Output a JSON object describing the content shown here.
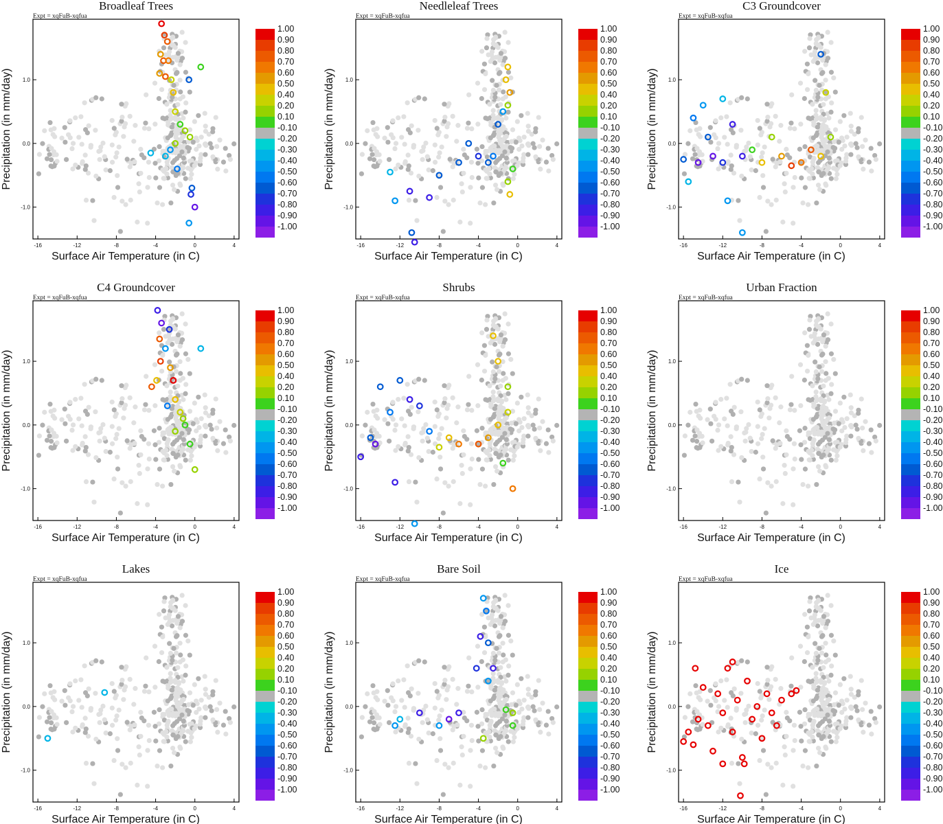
{
  "figure": {
    "expt_label": "Expt = xqFuB-xqfua",
    "xlabel": "Surface Air Temperature (in C)",
    "ylabel": "Precipitation (in mm/day)",
    "xticks": [
      "-16",
      "-12",
      "-8",
      "-4",
      "0",
      "4"
    ],
    "yticks": [
      "1.0",
      "0.0",
      "-1.0"
    ],
    "colorbar": {
      "labels": [
        "1.00",
        "0.90",
        "0.80",
        "0.70",
        "0.60",
        "0.50",
        "0.40",
        "0.20",
        "0.10",
        "-0.10",
        "-0.20",
        "-0.30",
        "-0.40",
        "-0.50",
        "-0.60",
        "-0.70",
        "-0.80",
        "-0.90",
        "-1.00"
      ],
      "colors": [
        "#e60000",
        "#e83c00",
        "#ec5a00",
        "#f07800",
        "#e49a00",
        "#e8be00",
        "#c8d200",
        "#96d200",
        "#3cd21e",
        "#b4b4b4",
        "#00d2d2",
        "#00b4e6",
        "#0096f0",
        "#0078f0",
        "#005ad2",
        "#1e32dc",
        "#3c1ee6",
        "#6414e6",
        "#8c1ee6"
      ]
    },
    "colors": {
      "background_points": "#e0e0e0",
      "active_points": "#b0b0b0"
    }
  },
  "panels": [
    {
      "title": "Broadleaf Trees"
    },
    {
      "title": "Needleleaf Trees"
    },
    {
      "title": "C3 Groundcover"
    },
    {
      "title": "C4 Groundcover"
    },
    {
      "title": "Shrubs"
    },
    {
      "title": "Urban Fraction"
    },
    {
      "title": "Lakes"
    },
    {
      "title": "Bare Soil"
    },
    {
      "title": "Ice"
    }
  ],
  "chart_data": {
    "type": "scatter",
    "xlim": [
      -16.5,
      4.5
    ],
    "ylim": [
      -1.5,
      1.95
    ],
    "x_tick_values": [
      -16,
      -12,
      -8,
      -4,
      0,
      4
    ],
    "y_tick_values": [
      1.0,
      0.0,
      -1.0
    ],
    "color_variable": "correlation (-1.00 to 1.00)",
    "panels": [
      {
        "title": "Broadleaf Trees",
        "highlight": [
          {
            "x": -3.4,
            "y": 1.88,
            "c": 0.95
          },
          {
            "x": -3.1,
            "y": 1.7,
            "c": 0.9
          },
          {
            "x": -2.8,
            "y": 1.6,
            "c": 0.8
          },
          {
            "x": -3.5,
            "y": 1.4,
            "c": 0.6
          },
          {
            "x": -3.2,
            "y": 1.3,
            "c": 0.75
          },
          {
            "x": -2.7,
            "y": 1.3,
            "c": 0.7
          },
          {
            "x": -3.6,
            "y": 1.1,
            "c": 0.55
          },
          {
            "x": -3.0,
            "y": 1.05,
            "c": 0.8
          },
          {
            "x": -2.4,
            "y": 1.0,
            "c": 0.35
          },
          {
            "x": -2.2,
            "y": 0.8,
            "c": 0.45
          },
          {
            "x": 0.6,
            "y": 1.2,
            "c": 0.15
          },
          {
            "x": -0.6,
            "y": 1.0,
            "c": -0.5
          },
          {
            "x": -2.0,
            "y": 0.5,
            "c": 0.3
          },
          {
            "x": -1.5,
            "y": 0.3,
            "c": 0.15
          },
          {
            "x": -1.0,
            "y": 0.2,
            "c": 0.2
          },
          {
            "x": -0.5,
            "y": 0.1,
            "c": 0.25
          },
          {
            "x": -2.5,
            "y": -0.1,
            "c": -0.3
          },
          {
            "x": -3.0,
            "y": -0.2,
            "c": -0.25
          },
          {
            "x": -4.5,
            "y": -0.15,
            "c": -0.25
          },
          {
            "x": -1.8,
            "y": -0.4,
            "c": -0.45
          },
          {
            "x": -0.3,
            "y": -0.7,
            "c": -0.6
          },
          {
            "x": -0.4,
            "y": -0.8,
            "c": -0.7
          },
          {
            "x": 0.0,
            "y": -1.0,
            "c": -0.85
          },
          {
            "x": -0.6,
            "y": -1.25,
            "c": -0.3
          },
          {
            "x": -2.0,
            "y": 0.0,
            "c": 0.2
          }
        ]
      },
      {
        "title": "Needleleaf Trees",
        "highlight": [
          {
            "x": -1.0,
            "y": 1.2,
            "c": 0.5
          },
          {
            "x": -1.2,
            "y": 1.0,
            "c": 0.4
          },
          {
            "x": -0.8,
            "y": 0.8,
            "c": 0.6
          },
          {
            "x": -1.0,
            "y": 0.6,
            "c": 0.2
          },
          {
            "x": -1.5,
            "y": 0.5,
            "c": -0.3
          },
          {
            "x": -2.0,
            "y": 0.3,
            "c": -0.6
          },
          {
            "x": -4.0,
            "y": -0.2,
            "c": -0.7
          },
          {
            "x": -6.0,
            "y": -0.3,
            "c": -0.5
          },
          {
            "x": -8.0,
            "y": -0.5,
            "c": -0.6
          },
          {
            "x": -9.0,
            "y": -0.85,
            "c": -0.75
          },
          {
            "x": -12.5,
            "y": -0.9,
            "c": -0.3
          },
          {
            "x": -11.0,
            "y": -0.75,
            "c": -0.8
          },
          {
            "x": -10.8,
            "y": -1.4,
            "c": -0.5
          },
          {
            "x": -10.5,
            "y": -1.55,
            "c": -0.8
          },
          {
            "x": -3.0,
            "y": -0.3,
            "c": -0.5
          },
          {
            "x": -1.0,
            "y": -0.6,
            "c": 0.25
          },
          {
            "x": -0.5,
            "y": -0.4,
            "c": 0.15
          },
          {
            "x": -0.8,
            "y": -0.8,
            "c": 0.4
          },
          {
            "x": -13.0,
            "y": -0.45,
            "c": -0.25
          },
          {
            "x": -5.0,
            "y": 0.0,
            "c": -0.55
          },
          {
            "x": -2.5,
            "y": -0.2,
            "c": -0.45
          }
        ]
      },
      {
        "title": "C3 Groundcover",
        "highlight": [
          {
            "x": -2.0,
            "y": 1.4,
            "c": -0.55
          },
          {
            "x": -1.5,
            "y": 0.8,
            "c": 0.3
          },
          {
            "x": -12.0,
            "y": 0.7,
            "c": -0.2
          },
          {
            "x": -14.0,
            "y": 0.6,
            "c": -0.3
          },
          {
            "x": -15.0,
            "y": 0.4,
            "c": -0.4
          },
          {
            "x": -13.5,
            "y": 0.1,
            "c": -0.6
          },
          {
            "x": -11.0,
            "y": 0.3,
            "c": -0.8
          },
          {
            "x": -10.0,
            "y": -0.2,
            "c": -0.75
          },
          {
            "x": -9.0,
            "y": -0.1,
            "c": 0.15
          },
          {
            "x": -8.0,
            "y": -0.3,
            "c": 0.5
          },
          {
            "x": -6.0,
            "y": -0.2,
            "c": 0.6
          },
          {
            "x": -4.0,
            "y": -0.3,
            "c": 0.7
          },
          {
            "x": -3.0,
            "y": -0.1,
            "c": 0.8
          },
          {
            "x": -2.0,
            "y": -0.2,
            "c": 0.4
          },
          {
            "x": -1.0,
            "y": 0.1,
            "c": 0.2
          },
          {
            "x": -15.5,
            "y": -0.6,
            "c": -0.25
          },
          {
            "x": -14.5,
            "y": -0.3,
            "c": -0.9
          },
          {
            "x": -13.0,
            "y": -0.2,
            "c": -0.85
          },
          {
            "x": -12.0,
            "y": -0.3,
            "c": -0.7
          },
          {
            "x": -11.5,
            "y": -0.9,
            "c": -0.35
          },
          {
            "x": -10.0,
            "y": -1.4,
            "c": -0.3
          },
          {
            "x": -7.0,
            "y": 0.1,
            "c": 0.25
          },
          {
            "x": -5.0,
            "y": -0.35,
            "c": 0.85
          },
          {
            "x": -16.0,
            "y": -0.25,
            "c": -0.5
          }
        ]
      },
      {
        "title": "C4 Groundcover",
        "highlight": [
          {
            "x": -3.8,
            "y": 1.8,
            "c": -0.8
          },
          {
            "x": -3.4,
            "y": 1.6,
            "c": -0.85
          },
          {
            "x": -2.6,
            "y": 1.5,
            "c": -0.7
          },
          {
            "x": -3.6,
            "y": 1.35,
            "c": 0.75
          },
          {
            "x": -3.0,
            "y": 1.2,
            "c": -0.3
          },
          {
            "x": 0.6,
            "y": 1.2,
            "c": -0.25
          },
          {
            "x": -3.5,
            "y": 1.0,
            "c": 0.85
          },
          {
            "x": -2.5,
            "y": 0.9,
            "c": 0.6
          },
          {
            "x": -3.9,
            "y": 0.7,
            "c": 0.5
          },
          {
            "x": -2.2,
            "y": 0.7,
            "c": 0.95
          },
          {
            "x": -4.4,
            "y": 0.6,
            "c": 0.75
          },
          {
            "x": -2.0,
            "y": 0.4,
            "c": 0.5
          },
          {
            "x": -1.5,
            "y": 0.2,
            "c": 0.35
          },
          {
            "x": -1.0,
            "y": 0.0,
            "c": 0.15
          },
          {
            "x": -2.0,
            "y": -0.1,
            "c": 0.2
          },
          {
            "x": -0.5,
            "y": -0.3,
            "c": 0.15
          },
          {
            "x": 0.0,
            "y": -0.7,
            "c": 0.2
          },
          {
            "x": -1.2,
            "y": 0.1,
            "c": 0.25
          },
          {
            "x": -2.8,
            "y": 0.3,
            "c": -0.4
          }
        ]
      },
      {
        "title": "Shrubs",
        "highlight": [
          {
            "x": -14.0,
            "y": 0.6,
            "c": -0.6
          },
          {
            "x": -12.0,
            "y": 0.7,
            "c": -0.55
          },
          {
            "x": -11.0,
            "y": 0.4,
            "c": -0.8
          },
          {
            "x": -10.0,
            "y": 0.3,
            "c": -0.7
          },
          {
            "x": -13.0,
            "y": 0.2,
            "c": -0.45
          },
          {
            "x": -15.0,
            "y": -0.2,
            "c": -0.6
          },
          {
            "x": -16.0,
            "y": -0.5,
            "c": -0.75
          },
          {
            "x": -12.5,
            "y": -0.9,
            "c": -0.8
          },
          {
            "x": -10.5,
            "y": -1.55,
            "c": -0.3
          },
          {
            "x": -9.0,
            "y": -0.1,
            "c": -0.4
          },
          {
            "x": -7.0,
            "y": -0.2,
            "c": 0.4
          },
          {
            "x": -6.0,
            "y": -0.3,
            "c": 0.7
          },
          {
            "x": -4.0,
            "y": -0.3,
            "c": 0.8
          },
          {
            "x": -3.0,
            "y": -0.2,
            "c": 0.6
          },
          {
            "x": -2.0,
            "y": 0.0,
            "c": 0.5
          },
          {
            "x": -1.0,
            "y": 0.2,
            "c": 0.3
          },
          {
            "x": -2.5,
            "y": 1.4,
            "c": 0.5
          },
          {
            "x": -2.0,
            "y": 1.0,
            "c": 0.4
          },
          {
            "x": -1.0,
            "y": 0.6,
            "c": 0.2
          },
          {
            "x": -0.5,
            "y": -1.0,
            "c": 0.7
          },
          {
            "x": -1.5,
            "y": -0.6,
            "c": 0.15
          },
          {
            "x": -8.0,
            "y": -0.35,
            "c": 0.35
          },
          {
            "x": -14.5,
            "y": -0.3,
            "c": -0.85
          }
        ]
      },
      {
        "title": "Urban Fraction",
        "highlight": []
      },
      {
        "title": "Lakes",
        "highlight": [
          {
            "x": -15.0,
            "y": -0.5,
            "c": -0.25
          },
          {
            "x": -9.2,
            "y": 0.22,
            "c": -0.2
          }
        ]
      },
      {
        "title": "Bare Soil",
        "highlight": [
          {
            "x": -3.5,
            "y": 1.7,
            "c": -0.3
          },
          {
            "x": -3.2,
            "y": 1.5,
            "c": -0.4
          },
          {
            "x": -3.8,
            "y": 1.1,
            "c": -0.8
          },
          {
            "x": -3.0,
            "y": 1.0,
            "c": -0.6
          },
          {
            "x": -4.2,
            "y": 0.6,
            "c": -0.7
          },
          {
            "x": -2.5,
            "y": 0.6,
            "c": -0.75
          },
          {
            "x": -3.0,
            "y": 0.4,
            "c": -0.3
          },
          {
            "x": -1.2,
            "y": -0.05,
            "c": 0.15
          },
          {
            "x": -0.5,
            "y": -0.1,
            "c": 0.2
          },
          {
            "x": -0.5,
            "y": -0.3,
            "c": 0.15
          },
          {
            "x": -12.0,
            "y": -0.2,
            "c": -0.25
          },
          {
            "x": -10.0,
            "y": -0.1,
            "c": -0.8
          },
          {
            "x": -8.0,
            "y": -0.3,
            "c": -0.3
          },
          {
            "x": -6.0,
            "y": -0.1,
            "c": -0.75
          },
          {
            "x": -3.5,
            "y": -0.5,
            "c": 0.25
          },
          {
            "x": -12.5,
            "y": -0.3,
            "c": -0.3
          },
          {
            "x": -7.0,
            "y": -0.2,
            "c": -0.85
          }
        ]
      },
      {
        "title": "Ice",
        "highlight": [
          {
            "x": -16.0,
            "y": -0.55,
            "c": 1.0
          },
          {
            "x": -15.5,
            "y": -0.4,
            "c": 1.0
          },
          {
            "x": -15.0,
            "y": -0.6,
            "c": 1.0
          },
          {
            "x": -14.5,
            "y": -0.2,
            "c": 1.0
          },
          {
            "x": -14.0,
            "y": 0.3,
            "c": 1.0
          },
          {
            "x": -13.5,
            "y": -0.3,
            "c": 1.0
          },
          {
            "x": -13.0,
            "y": -0.7,
            "c": 1.0
          },
          {
            "x": -12.5,
            "y": 0.2,
            "c": 1.0
          },
          {
            "x": -12.0,
            "y": -0.1,
            "c": 1.0
          },
          {
            "x": -11.5,
            "y": 0.6,
            "c": 1.0
          },
          {
            "x": -11.0,
            "y": -0.4,
            "c": 1.0
          },
          {
            "x": -10.5,
            "y": 0.1,
            "c": 1.0
          },
          {
            "x": -10.0,
            "y": -0.8,
            "c": 1.0
          },
          {
            "x": -9.5,
            "y": 0.4,
            "c": 1.0
          },
          {
            "x": -9.0,
            "y": -0.2,
            "c": 1.0
          },
          {
            "x": -8.5,
            "y": 0.0,
            "c": 1.0
          },
          {
            "x": -8.0,
            "y": -0.5,
            "c": 1.0
          },
          {
            "x": -7.5,
            "y": 0.2,
            "c": 1.0
          },
          {
            "x": -7.0,
            "y": -0.1,
            "c": 1.0
          },
          {
            "x": -6.5,
            "y": -0.3,
            "c": 1.0
          },
          {
            "x": -6.0,
            "y": 0.1,
            "c": 1.0
          },
          {
            "x": -5.0,
            "y": 0.2,
            "c": 1.0
          },
          {
            "x": -4.5,
            "y": 0.25,
            "c": 1.0
          },
          {
            "x": -12.0,
            "y": -0.9,
            "c": 1.0
          },
          {
            "x": -10.2,
            "y": -1.4,
            "c": 1.0
          },
          {
            "x": -14.8,
            "y": 0.6,
            "c": 1.0
          },
          {
            "x": -11.0,
            "y": 0.7,
            "c": 1.0
          },
          {
            "x": -9.8,
            "y": -0.9,
            "c": 1.0
          }
        ]
      }
    ]
  }
}
